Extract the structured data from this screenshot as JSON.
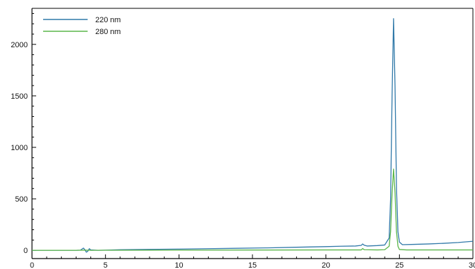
{
  "chart_data": {
    "type": "line",
    "title": "",
    "xlabel": "",
    "ylabel": "",
    "xlim": [
      0,
      30
    ],
    "ylim": [
      -80,
      2350
    ],
    "x_ticks": [
      0,
      5,
      10,
      15,
      20,
      25,
      30
    ],
    "y_ticks": [
      0,
      500,
      1000,
      1500,
      2000
    ],
    "grid": false,
    "legend_position": "top-left",
    "series": [
      {
        "name": "220 nm",
        "color": "#2f78a8",
        "points": [
          [
            0,
            0
          ],
          [
            1,
            0
          ],
          [
            2,
            0
          ],
          [
            3,
            0
          ],
          [
            3.3,
            2
          ],
          [
            3.5,
            22
          ],
          [
            3.6,
            6
          ],
          [
            3.7,
            -18
          ],
          [
            3.8,
            -8
          ],
          [
            3.9,
            16
          ],
          [
            4.0,
            4
          ],
          [
            4.5,
            0
          ],
          [
            5,
            2
          ],
          [
            6,
            6
          ],
          [
            8,
            9
          ],
          [
            10,
            12
          ],
          [
            12,
            16
          ],
          [
            14,
            20
          ],
          [
            16,
            24
          ],
          [
            18,
            30
          ],
          [
            20,
            36
          ],
          [
            21,
            40
          ],
          [
            22,
            42
          ],
          [
            22.4,
            48
          ],
          [
            22.5,
            62
          ],
          [
            22.6,
            50
          ],
          [
            22.8,
            42
          ],
          [
            23.5,
            46
          ],
          [
            24,
            52
          ],
          [
            24.3,
            120
          ],
          [
            24.4,
            500
          ],
          [
            24.5,
            1500
          ],
          [
            24.6,
            2250
          ],
          [
            24.7,
            1600
          ],
          [
            24.8,
            600
          ],
          [
            24.9,
            180
          ],
          [
            25.0,
            80
          ],
          [
            25.2,
            55
          ],
          [
            26,
            58
          ],
          [
            27,
            62
          ],
          [
            28,
            68
          ],
          [
            29,
            76
          ],
          [
            30,
            88
          ]
        ]
      },
      {
        "name": "280 nm",
        "color": "#59b548",
        "points": [
          [
            0,
            0
          ],
          [
            3,
            0
          ],
          [
            3.6,
            2
          ],
          [
            4,
            0
          ],
          [
            5,
            1
          ],
          [
            10,
            2
          ],
          [
            15,
            3
          ],
          [
            20,
            4
          ],
          [
            22.4,
            4
          ],
          [
            22.5,
            18
          ],
          [
            22.6,
            6
          ],
          [
            23.5,
            4
          ],
          [
            24,
            6
          ],
          [
            24.3,
            40
          ],
          [
            24.4,
            180
          ],
          [
            24.5,
            550
          ],
          [
            24.6,
            790
          ],
          [
            24.7,
            560
          ],
          [
            24.8,
            180
          ],
          [
            24.9,
            40
          ],
          [
            25.0,
            8
          ],
          [
            25.5,
            4
          ],
          [
            30,
            4
          ]
        ]
      }
    ]
  }
}
